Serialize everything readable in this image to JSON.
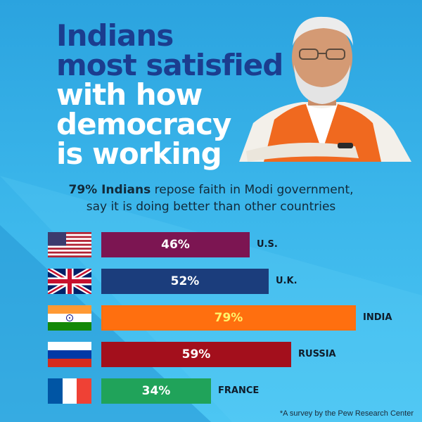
{
  "headline": {
    "line1": "Indians",
    "line2": "most satisfied",
    "line3": "with how",
    "line4": "democracy",
    "line5": "is working"
  },
  "subtitle": {
    "bold": "79% Indians",
    "rest": "repose faith in Modi government,",
    "line2": "say it is doing better than other countries"
  },
  "chart_data": {
    "type": "bar",
    "orientation": "horizontal",
    "categories": [
      "U.S.",
      "U.K.",
      "INDIA",
      "RUSSIA",
      "FRANCE"
    ],
    "values": [
      46,
      52,
      79,
      59,
      34
    ],
    "value_labels": [
      "46%",
      "52%",
      "79%",
      "59%",
      "34%"
    ],
    "bar_colors": [
      "#7c1552",
      "#1b3d7c",
      "#ff6f0f",
      "#a30f1c",
      "#20a35a"
    ],
    "value_label_colors": [
      "#ffffff",
      "#ffffff",
      "#fff46a",
      "#ffffff",
      "#ffffff"
    ],
    "flags": [
      "us-flag",
      "uk-flag",
      "india-flag",
      "russia-flag",
      "france-flag"
    ],
    "xlim": [
      0,
      100
    ],
    "title": "",
    "xlabel": "",
    "ylabel": "",
    "grid": false,
    "legend": "none"
  },
  "footnote": "*A survey by the Pew Research Center",
  "colors": {
    "background_top": "#2ba3df",
    "background_bottom": "#4cc6f3",
    "headline_dark": "#1b3d8f",
    "headline_light": "#ffffff"
  }
}
